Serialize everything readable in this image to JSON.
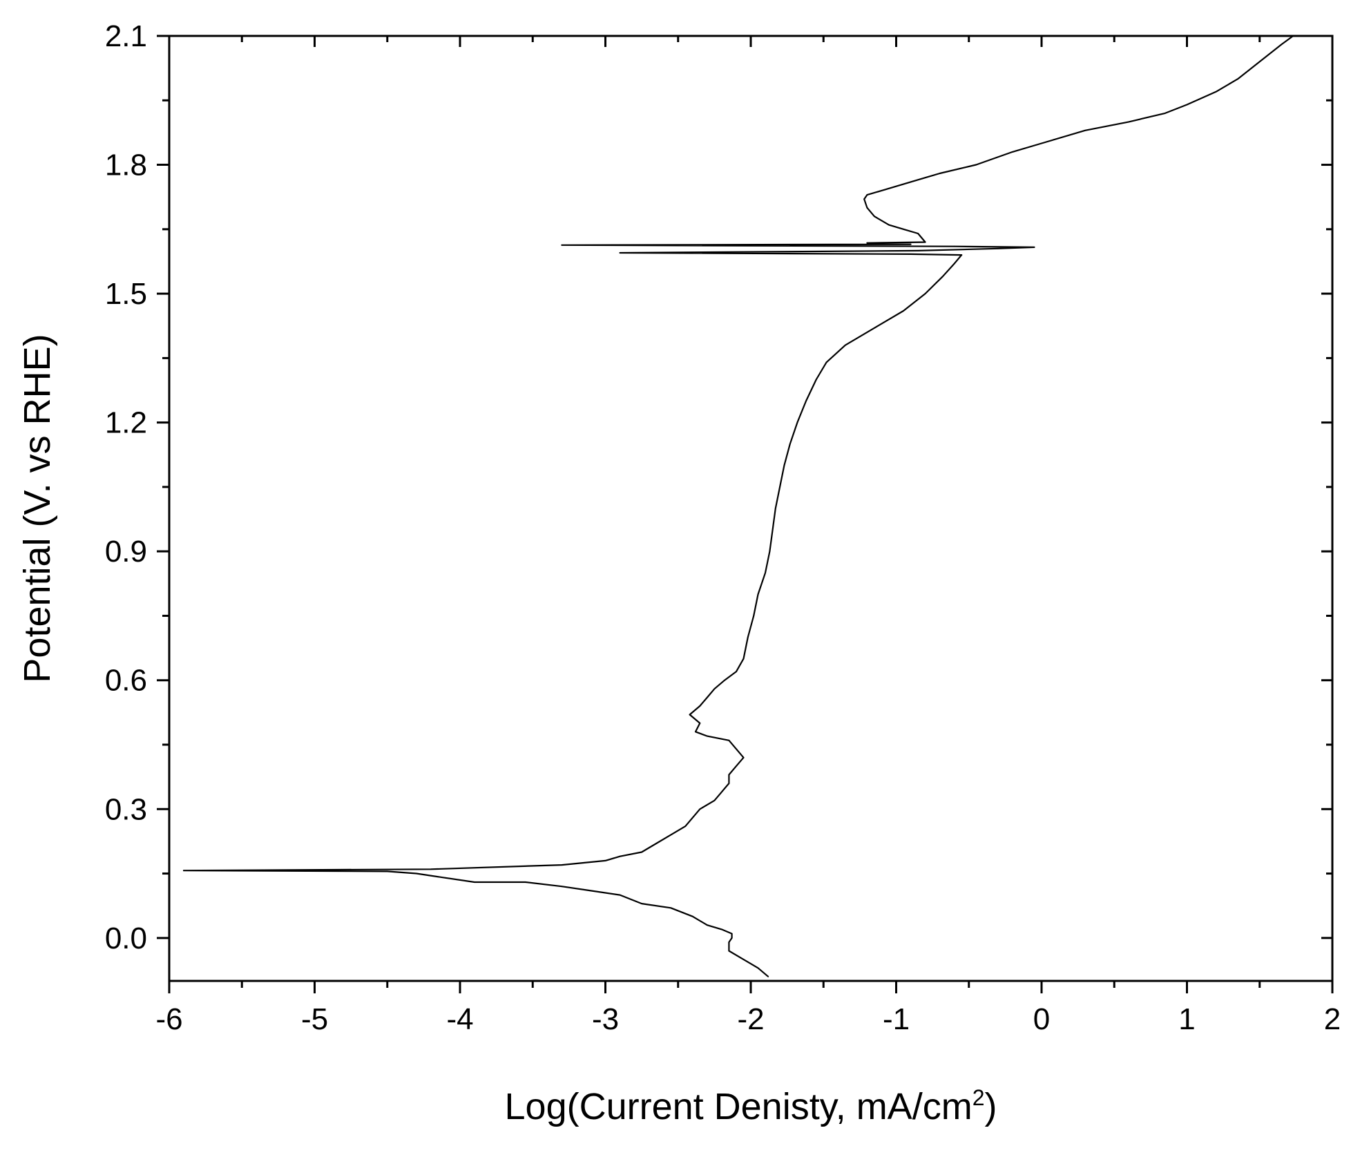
{
  "chart_data": {
    "type": "line",
    "title": "",
    "xlabel": {
      "main": "Log(Current Denisty, mA/cm",
      "sup": "2",
      "close": ")"
    },
    "ylabel": "Potential (V. vs RHE)",
    "xlim": [
      -6,
      2
    ],
    "ylim": [
      -0.1,
      2.1
    ],
    "x_ticks": [
      -6,
      -5,
      -4,
      -3,
      -2,
      -1,
      0,
      1,
      2
    ],
    "x_tick_labels": [
      "-6",
      "-5",
      "-4",
      "-3",
      "-2",
      "-1",
      "0",
      "1",
      "2"
    ],
    "y_ticks": [
      0.0,
      0.3,
      0.6,
      0.9,
      1.2,
      1.5,
      1.8,
      2.1
    ],
    "y_tick_labels": [
      "0.0",
      "0.3",
      "0.6",
      "0.9",
      "1.2",
      "1.5",
      "1.8",
      "2.1"
    ],
    "grid": false,
    "legend": "none",
    "line_color": "#000000",
    "series": [
      {
        "name": "",
        "points": [
          [
            -1.88,
            -0.09
          ],
          [
            -1.95,
            -0.07
          ],
          [
            -2.05,
            -0.05
          ],
          [
            -2.15,
            -0.03
          ],
          [
            -2.15,
            -0.01
          ],
          [
            -2.13,
            0.0
          ],
          [
            -2.13,
            0.01
          ],
          [
            -2.2,
            0.02
          ],
          [
            -2.3,
            0.03
          ],
          [
            -2.4,
            0.05
          ],
          [
            -2.55,
            0.07
          ],
          [
            -2.75,
            0.08
          ],
          [
            -2.9,
            0.1
          ],
          [
            -3.1,
            0.11
          ],
          [
            -3.3,
            0.12
          ],
          [
            -3.55,
            0.13
          ],
          [
            -3.9,
            0.13
          ],
          [
            -4.1,
            0.14
          ],
          [
            -4.3,
            0.15
          ],
          [
            -4.5,
            0.155
          ],
          [
            -5.9,
            0.157
          ],
          [
            -4.2,
            0.16
          ],
          [
            -3.3,
            0.17
          ],
          [
            -3.0,
            0.18
          ],
          [
            -2.9,
            0.19
          ],
          [
            -2.75,
            0.2
          ],
          [
            -2.65,
            0.22
          ],
          [
            -2.55,
            0.24
          ],
          [
            -2.45,
            0.26
          ],
          [
            -2.4,
            0.28
          ],
          [
            -2.35,
            0.3
          ],
          [
            -2.25,
            0.32
          ],
          [
            -2.2,
            0.34
          ],
          [
            -2.15,
            0.36
          ],
          [
            -2.15,
            0.38
          ],
          [
            -2.1,
            0.4
          ],
          [
            -2.05,
            0.42
          ],
          [
            -2.1,
            0.44
          ],
          [
            -2.15,
            0.46
          ],
          [
            -2.3,
            0.47
          ],
          [
            -2.38,
            0.48
          ],
          [
            -2.35,
            0.5
          ],
          [
            -2.42,
            0.52
          ],
          [
            -2.35,
            0.54
          ],
          [
            -2.3,
            0.56
          ],
          [
            -2.25,
            0.58
          ],
          [
            -2.18,
            0.6
          ],
          [
            -2.1,
            0.62
          ],
          [
            -2.05,
            0.65
          ],
          [
            -2.02,
            0.7
          ],
          [
            -1.98,
            0.75
          ],
          [
            -1.95,
            0.8
          ],
          [
            -1.9,
            0.85
          ],
          [
            -1.87,
            0.9
          ],
          [
            -1.85,
            0.95
          ],
          [
            -1.83,
            1.0
          ],
          [
            -1.8,
            1.05
          ],
          [
            -1.77,
            1.1
          ],
          [
            -1.73,
            1.15
          ],
          [
            -1.68,
            1.2
          ],
          [
            -1.62,
            1.25
          ],
          [
            -1.55,
            1.3
          ],
          [
            -1.48,
            1.34
          ],
          [
            -1.35,
            1.38
          ],
          [
            -1.15,
            1.42
          ],
          [
            -0.95,
            1.46
          ],
          [
            -0.8,
            1.5
          ],
          [
            -0.68,
            1.54
          ],
          [
            -0.6,
            1.57
          ],
          [
            -0.55,
            1.59
          ],
          [
            -0.9,
            1.592
          ],
          [
            -2.9,
            1.595
          ],
          [
            -0.85,
            1.6
          ],
          [
            -0.3,
            1.605
          ],
          [
            -0.05,
            1.608
          ],
          [
            -0.6,
            1.61
          ],
          [
            -3.3,
            1.613
          ],
          [
            -0.9,
            1.615
          ],
          [
            -1.2,
            1.618
          ],
          [
            -0.8,
            1.62
          ],
          [
            -0.85,
            1.64
          ],
          [
            -0.95,
            1.65
          ],
          [
            -1.05,
            1.66
          ],
          [
            -1.15,
            1.68
          ],
          [
            -1.2,
            1.7
          ],
          [
            -1.22,
            1.72
          ],
          [
            -1.2,
            1.73
          ],
          [
            -1.1,
            1.74
          ],
          [
            -0.9,
            1.76
          ],
          [
            -0.7,
            1.78
          ],
          [
            -0.45,
            1.8
          ],
          [
            -0.2,
            1.83
          ],
          [
            0.0,
            1.85
          ],
          [
            0.3,
            1.88
          ],
          [
            0.6,
            1.9
          ],
          [
            0.85,
            1.92
          ],
          [
            1.0,
            1.94
          ],
          [
            1.2,
            1.97
          ],
          [
            1.35,
            2.0
          ],
          [
            1.5,
            2.04
          ],
          [
            1.65,
            2.08
          ],
          [
            1.73,
            2.1
          ]
        ]
      }
    ]
  }
}
